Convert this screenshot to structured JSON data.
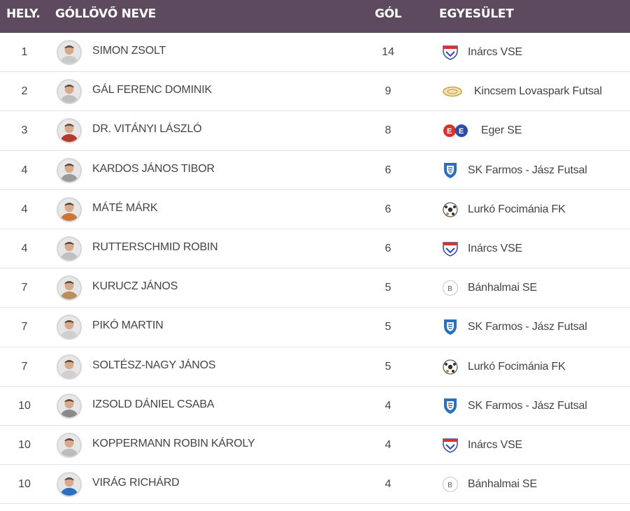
{
  "headers": {
    "rank": "HELY.",
    "name": "GÓLLÖVŐ NEVE",
    "goals": "GÓL",
    "club": "EGYESÜLET"
  },
  "colors": {
    "header_bg": "#5e4a5e",
    "header_text": "#ffffff"
  },
  "rows": [
    {
      "rank": "1",
      "name": "SIMON ZSOLT",
      "goals": "14",
      "club": "Inárcs VSE",
      "logo": "inarcs-vse-logo-icon"
    },
    {
      "rank": "2",
      "name": "GÁL FERENC DOMINIK",
      "goals": "9",
      "club": "Kincsem Lovaspark Futsal",
      "logo": "kincsem-logo-icon"
    },
    {
      "rank": "3",
      "name": "DR. VITÁNYI LÁSZLÓ",
      "goals": "8",
      "club": "Eger SE",
      "logo": "eger-se-logo-icon"
    },
    {
      "rank": "4",
      "name": "KARDOS JÁNOS TIBOR",
      "goals": "6",
      "club": "SK Farmos - Jász Futsal",
      "logo": "sk-farmos-logo-icon"
    },
    {
      "rank": "4",
      "name": "MÁTÉ MÁRK",
      "goals": "6",
      "club": "Lurkó Focimánia FK",
      "logo": "lurko-logo-icon"
    },
    {
      "rank": "4",
      "name": "RUTTERSCHMID ROBIN",
      "goals": "6",
      "club": "Inárcs VSE",
      "logo": "inarcs-vse-logo-icon"
    },
    {
      "rank": "7",
      "name": "KURUCZ JÁNOS",
      "goals": "5",
      "club": "Bánhalmai SE",
      "logo": "banhalmai-logo-icon"
    },
    {
      "rank": "7",
      "name": "PIKÓ MARTIN",
      "goals": "5",
      "club": "SK Farmos - Jász Futsal",
      "logo": "sk-farmos-logo-icon"
    },
    {
      "rank": "7",
      "name": "SOLTÉSZ-NAGY JÁNOS",
      "goals": "5",
      "club": "Lurkó Focimánia FK",
      "logo": "lurko-logo-icon"
    },
    {
      "rank": "10",
      "name": "IZSOLD DÁNIEL CSABA",
      "goals": "4",
      "club": "SK Farmos - Jász Futsal",
      "logo": "sk-farmos-logo-icon"
    },
    {
      "rank": "10",
      "name": "KOPPERMANN ROBIN KÁROLY",
      "goals": "4",
      "club": "Inárcs VSE",
      "logo": "inarcs-vse-logo-icon"
    },
    {
      "rank": "10",
      "name": "VIRÁG RICHÁRD",
      "goals": "4",
      "club": "Bánhalmai SE",
      "logo": "banhalmai-logo-icon"
    }
  ]
}
